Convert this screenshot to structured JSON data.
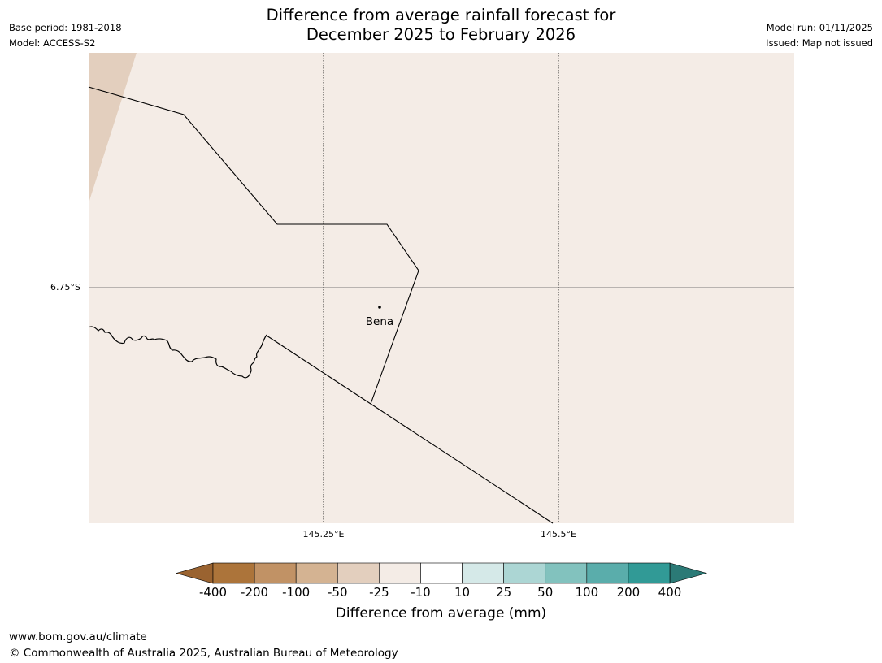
{
  "title_line1": "Difference from average rainfall forecast for",
  "title_line2": "December 2025 to February 2026",
  "meta_left": {
    "base_period": "Base period: 1981-2018",
    "model": "Model: ACCESS-S2"
  },
  "meta_right": {
    "model_run": "Model run: 01/11/2025",
    "issued": "Issued: Map not issued"
  },
  "map": {
    "background_color": "#f4ece6",
    "corner_wedge_color": "#e3cfbe",
    "latitude_labels": [
      "6.75°S"
    ],
    "longitude_labels": [
      "145.25°E",
      "145.5°E"
    ],
    "places": [
      {
        "name": "Bena"
      }
    ]
  },
  "colorbar": {
    "tick_labels": [
      "-400",
      "-200",
      "-100",
      "-50",
      "-25",
      "-10",
      "10",
      "25",
      "50",
      "100",
      "200",
      "400"
    ],
    "colors": [
      "#ac743a",
      "#c19265",
      "#d4b392",
      "#e3cfbe",
      "#f4ece6",
      "#ffffff",
      "#d5e9e8",
      "#acd6d4",
      "#82c2be",
      "#5aadab",
      "#319a96"
    ],
    "under_color": "#9a6330",
    "over_color": "#2b7a76",
    "title": "Difference from average (mm)"
  },
  "footer": {
    "url": "www.bom.gov.au/climate",
    "copyright": "© Commonwealth of Australia 2025, Australian Bureau of Meteorology"
  }
}
